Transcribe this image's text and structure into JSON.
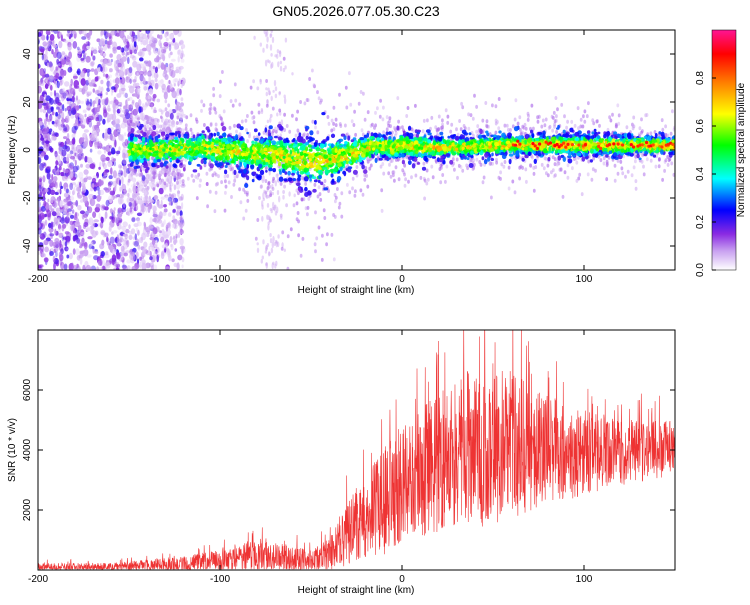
{
  "title": "GN05.2026.077.05.30.C23",
  "chart_data": [
    {
      "type": "heatmap",
      "xlabel": "Height of straight line (km)",
      "ylabel": "Frequency (Hz)",
      "xlim": [
        -200,
        150
      ],
      "ylim": [
        -50,
        50
      ],
      "xticks": [
        -200,
        -100,
        0,
        100
      ],
      "yticks": [
        -40,
        -20,
        0,
        20,
        40
      ],
      "colorbar": {
        "label": "Normalized spectral amplitude",
        "range": [
          0.0,
          1.0
        ],
        "ticks": [
          "0.0",
          "0.2",
          "0.4",
          "0.6",
          "0.8"
        ],
        "colormap": [
          "#ffffff",
          "#8a2be2",
          "#0000ff",
          "#00ffff",
          "#00ff00",
          "#ffff00",
          "#ff7f00",
          "#ff0000",
          "#ff1493"
        ]
      },
      "ridge": {
        "description": "strong band near 0 Hz from about -150 km to 150 km",
        "x": [
          -150,
          -130,
          -110,
          -90,
          -70,
          -55,
          -45,
          -35,
          -25,
          -15,
          -5,
          0,
          10,
          30,
          60,
          100,
          150
        ],
        "center_hz": [
          0,
          0,
          1,
          -1,
          -2,
          -4,
          -5,
          -3,
          -1,
          2,
          1,
          2,
          1,
          1,
          2,
          2,
          2
        ],
        "width_hz": [
          8,
          8,
          8,
          9,
          10,
          12,
          12,
          10,
          8,
          6,
          6,
          6,
          6,
          5,
          5,
          5,
          4
        ]
      },
      "noise_region": {
        "x_from": -200,
        "x_to": -120,
        "y_from": -50,
        "y_to": 50
      }
    },
    {
      "type": "line",
      "xlabel": "Height of straight line (km)",
      "ylabel": "SNR (10 * v/v)",
      "xlim": [
        -200,
        150
      ],
      "ylim": [
        0,
        8000
      ],
      "xticks": [
        -200,
        -100,
        0,
        100
      ],
      "yticks": [
        2000,
        4000,
        6000
      ],
      "color": "#ee3333",
      "envelope": {
        "x": [
          -200,
          -160,
          -140,
          -120,
          -100,
          -90,
          -80,
          -70,
          -60,
          -50,
          -40,
          -30,
          -20,
          -10,
          0,
          10,
          20,
          30,
          40,
          50,
          60,
          70,
          80,
          90,
          100,
          110,
          120,
          130,
          140,
          150
        ],
        "mean": [
          100,
          100,
          150,
          200,
          300,
          400,
          500,
          450,
          400,
          300,
          500,
          1200,
          1800,
          2300,
          2800,
          3200,
          3600,
          3900,
          4100,
          4200,
          4200,
          4100,
          4000,
          3900,
          3900,
          3900,
          3900,
          4000,
          4000,
          4100
        ],
        "spread": [
          150,
          150,
          200,
          300,
          400,
          500,
          600,
          500,
          500,
          400,
          600,
          1200,
          1600,
          2000,
          2200,
          2400,
          2600,
          2800,
          3000,
          3000,
          2800,
          2400,
          2000,
          1800,
          1600,
          1400,
          1200,
          1200,
          1100,
          1000
        ]
      }
    }
  ]
}
